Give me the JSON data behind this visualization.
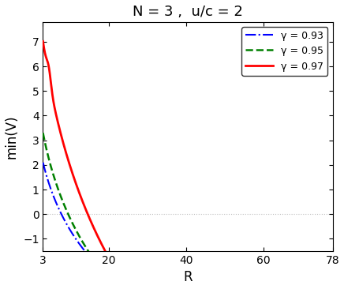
{
  "title": "N = 3 ,  u/c = 2",
  "xlabel": "R",
  "ylabel": "min(V)",
  "x_start": 3,
  "x_end": 78,
  "xticks": [
    3,
    20,
    40,
    60,
    78
  ],
  "yticks": [
    -1,
    0,
    1,
    2,
    3,
    4,
    5,
    6,
    7
  ],
  "ylim": [
    -1.5,
    7.8
  ],
  "xlim": [
    3,
    78
  ],
  "curves": [
    {
      "gamma": 0.93,
      "label": "γ = 0.93",
      "color": "#0000FF",
      "linestyle": "-.",
      "A": 0.9,
      "B": -1.95,
      "C": 5.55,
      "peak_A": 0.0,
      "peak_tau": 1.0
    },
    {
      "gamma": 0.95,
      "label": "γ = 0.95",
      "color": "#008000",
      "linestyle": "--",
      "A": 1.8,
      "B": -2.3,
      "C": 6.8,
      "peak_A": 0.0,
      "peak_tau": 1.0
    },
    {
      "gamma": 0.97,
      "label": "γ = 0.97",
      "color": "#FF0000",
      "linestyle": "-",
      "A": 5.2,
      "B": -3.2,
      "C": 8.5,
      "peak_A": 1.5,
      "peak_tau": 1.8
    }
  ],
  "background_color": "#ffffff",
  "grid_color": "#c0c0c0"
}
